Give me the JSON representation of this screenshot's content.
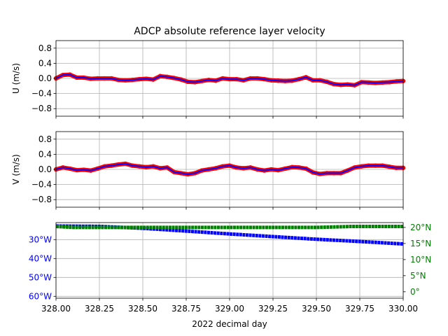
{
  "chart_data": [
    {
      "type": "line",
      "title": "ADCP absolute reference layer velocity",
      "ylabel": "U (m/s)",
      "xlabel": "",
      "xlim": [
        328.0,
        330.0
      ],
      "ylim": [
        -1.0,
        1.0
      ],
      "yticks": [
        0.8,
        0.4,
        0.0,
        -0.4,
        -0.8
      ],
      "ytick_labels": [
        "0.8",
        "0.4",
        "0.0",
        "−0.4",
        "−0.8"
      ],
      "grid": true,
      "series": [
        {
          "color": "#ff0000",
          "style": "dots",
          "x": [
            328.0,
            328.04,
            328.08,
            328.12,
            328.16,
            328.2,
            328.24,
            328.28,
            328.32,
            328.36,
            328.4,
            328.44,
            328.48,
            328.52,
            328.56,
            328.6,
            328.64,
            328.68,
            328.72,
            328.76,
            328.8,
            328.84,
            328.88,
            328.92,
            328.96,
            329.0,
            329.04,
            329.08,
            329.12,
            329.16,
            329.2,
            329.24,
            329.28,
            329.32,
            329.36,
            329.4,
            329.44,
            329.48,
            329.52,
            329.56,
            329.6,
            329.64,
            329.68,
            329.72,
            329.76,
            329.8,
            329.84,
            329.88,
            329.92,
            329.96,
            330.0
          ],
          "values": [
            0.0,
            0.09,
            0.1,
            0.02,
            0.02,
            -0.01,
            0.0,
            0.0,
            0.0,
            -0.04,
            -0.05,
            -0.04,
            -0.02,
            -0.01,
            -0.03,
            0.06,
            0.04,
            0.01,
            -0.03,
            -0.09,
            -0.1,
            -0.07,
            -0.04,
            -0.06,
            0.0,
            -0.02,
            -0.02,
            -0.05,
            0.0,
            0.0,
            -0.02,
            -0.05,
            -0.06,
            -0.07,
            -0.06,
            -0.02,
            0.03,
            -0.05,
            -0.05,
            -0.09,
            -0.15,
            -0.17,
            -0.16,
            -0.18,
            -0.1,
            -0.11,
            -0.12,
            -0.11,
            -0.1,
            -0.08,
            -0.07
          ]
        },
        {
          "color": "#0000ff",
          "style": "line",
          "x": [
            328.0,
            328.04,
            328.08,
            328.12,
            328.16,
            328.2,
            328.24,
            328.28,
            328.32,
            328.36,
            328.4,
            328.44,
            328.48,
            328.52,
            328.56,
            328.6,
            328.64,
            328.68,
            328.72,
            328.76,
            328.8,
            328.84,
            328.88,
            328.92,
            328.96,
            329.0,
            329.04,
            329.08,
            329.12,
            329.16,
            329.2,
            329.24,
            329.28,
            329.32,
            329.36,
            329.4,
            329.44,
            329.48,
            329.52,
            329.56,
            329.6,
            329.64,
            329.68,
            329.72,
            329.76,
            329.8,
            329.84,
            329.88,
            329.92,
            329.96,
            330.0
          ],
          "values": [
            0.0,
            0.09,
            0.1,
            0.02,
            0.02,
            -0.01,
            0.0,
            0.0,
            0.0,
            -0.04,
            -0.05,
            -0.04,
            -0.02,
            -0.01,
            -0.03,
            0.06,
            0.04,
            0.01,
            -0.03,
            -0.09,
            -0.1,
            -0.07,
            -0.04,
            -0.06,
            0.0,
            -0.02,
            -0.02,
            -0.05,
            0.0,
            0.0,
            -0.02,
            -0.05,
            -0.06,
            -0.07,
            -0.06,
            -0.02,
            0.03,
            -0.05,
            -0.05,
            -0.09,
            -0.15,
            -0.17,
            -0.16,
            -0.18,
            -0.1,
            -0.11,
            -0.12,
            -0.11,
            -0.1,
            -0.08,
            -0.07
          ]
        }
      ]
    },
    {
      "type": "line",
      "ylabel": "V (m/s)",
      "xlabel": "",
      "xlim": [
        328.0,
        330.0
      ],
      "ylim": [
        -1.0,
        1.0
      ],
      "yticks": [
        0.8,
        0.4,
        0.0,
        -0.4,
        -0.8
      ],
      "ytick_labels": [
        "0.8",
        "0.4",
        "0.0",
        "−0.4",
        "−0.8"
      ],
      "grid": true,
      "series": [
        {
          "color": "#ff0000",
          "style": "dots",
          "x": [
            328.0,
            328.04,
            328.08,
            328.12,
            328.16,
            328.2,
            328.24,
            328.28,
            328.32,
            328.36,
            328.4,
            328.44,
            328.48,
            328.52,
            328.56,
            328.6,
            328.64,
            328.68,
            328.72,
            328.76,
            328.8,
            328.84,
            328.88,
            328.92,
            328.96,
            329.0,
            329.04,
            329.08,
            329.12,
            329.16,
            329.2,
            329.24,
            329.28,
            329.32,
            329.36,
            329.4,
            329.44,
            329.48,
            329.52,
            329.56,
            329.6,
            329.64,
            329.68,
            329.72,
            329.76,
            329.8,
            329.84,
            329.88,
            329.92,
            329.96,
            330.0
          ],
          "values": [
            0.0,
            0.05,
            0.02,
            -0.02,
            -0.01,
            -0.03,
            0.02,
            0.08,
            0.1,
            0.13,
            0.15,
            0.1,
            0.08,
            0.06,
            0.08,
            0.03,
            0.05,
            -0.07,
            -0.1,
            -0.13,
            -0.1,
            -0.03,
            0.0,
            0.03,
            0.08,
            0.1,
            0.05,
            0.03,
            0.05,
            0.0,
            -0.03,
            0.0,
            -0.02,
            0.02,
            0.06,
            0.05,
            0.02,
            -0.08,
            -0.12,
            -0.1,
            -0.1,
            -0.1,
            -0.03,
            0.05,
            0.08,
            0.1,
            0.1,
            0.1,
            0.07,
            0.04,
            0.04
          ]
        },
        {
          "color": "#0000ff",
          "style": "line",
          "x": [
            328.0,
            328.04,
            328.08,
            328.12,
            328.16,
            328.2,
            328.24,
            328.28,
            328.32,
            328.36,
            328.4,
            328.44,
            328.48,
            328.52,
            328.56,
            328.6,
            328.64,
            328.68,
            328.72,
            328.76,
            328.8,
            328.84,
            328.88,
            328.92,
            328.96,
            329.0,
            329.04,
            329.08,
            329.12,
            329.16,
            329.2,
            329.24,
            329.28,
            329.32,
            329.36,
            329.4,
            329.44,
            329.48,
            329.52,
            329.56,
            329.6,
            329.64,
            329.68,
            329.72,
            329.76,
            329.8,
            329.84,
            329.88,
            329.92,
            329.96,
            330.0
          ],
          "values": [
            0.0,
            0.05,
            0.02,
            -0.02,
            -0.01,
            -0.03,
            0.02,
            0.08,
            0.1,
            0.13,
            0.15,
            0.1,
            0.08,
            0.06,
            0.08,
            0.03,
            0.05,
            -0.07,
            -0.1,
            -0.13,
            -0.1,
            -0.03,
            0.0,
            0.03,
            0.08,
            0.1,
            0.05,
            0.03,
            0.05,
            0.0,
            -0.03,
            0.0,
            -0.02,
            0.02,
            0.06,
            0.05,
            0.02,
            -0.08,
            -0.12,
            -0.1,
            -0.1,
            -0.1,
            -0.03,
            0.05,
            0.08,
            0.1,
            0.1,
            0.1,
            0.07,
            0.04,
            0.04
          ]
        }
      ]
    },
    {
      "type": "line",
      "xlabel": "2022 decimal day",
      "xlim": [
        328.0,
        330.0
      ],
      "xticks": [
        328.0,
        328.25,
        328.5,
        328.75,
        329.0,
        329.25,
        329.5,
        329.75,
        330.0
      ],
      "xtick_labels": [
        "328.00",
        "328.25",
        "328.50",
        "328.75",
        "329.00",
        "329.25",
        "329.50",
        "329.75",
        "330.00"
      ],
      "grid": true,
      "left_axis": {
        "color": "#0000ff",
        "ylim": [
          61.0,
          21.0
        ],
        "yticks": [
          30,
          40,
          50,
          60
        ],
        "ytick_labels": [
          "30°W",
          "40°W",
          "50°W",
          "60°W"
        ]
      },
      "right_axis": {
        "color": "#008000",
        "ylim": [
          -2.0,
          21.5
        ],
        "yticks": [
          20,
          15,
          10,
          5,
          0
        ],
        "ytick_labels": [
          "20°N",
          "15°N",
          "10°N",
          "5°N",
          "0°"
        ]
      },
      "series": [
        {
          "axis": "left",
          "color": "#0000ff",
          "x": [
            328.0,
            328.25,
            328.5,
            328.75,
            329.0,
            329.25,
            329.5,
            329.75,
            330.0
          ],
          "values": [
            22.8,
            23.0,
            24.0,
            25.5,
            27.0,
            28.4,
            29.8,
            31.0,
            32.3
          ]
        },
        {
          "axis": "right",
          "color": "#008000",
          "x": [
            328.0,
            328.1,
            328.5,
            329.0,
            329.5,
            329.7,
            330.0
          ],
          "values": [
            20.3,
            20.0,
            20.0,
            20.0,
            20.0,
            20.3,
            20.3
          ]
        }
      ]
    }
  ]
}
